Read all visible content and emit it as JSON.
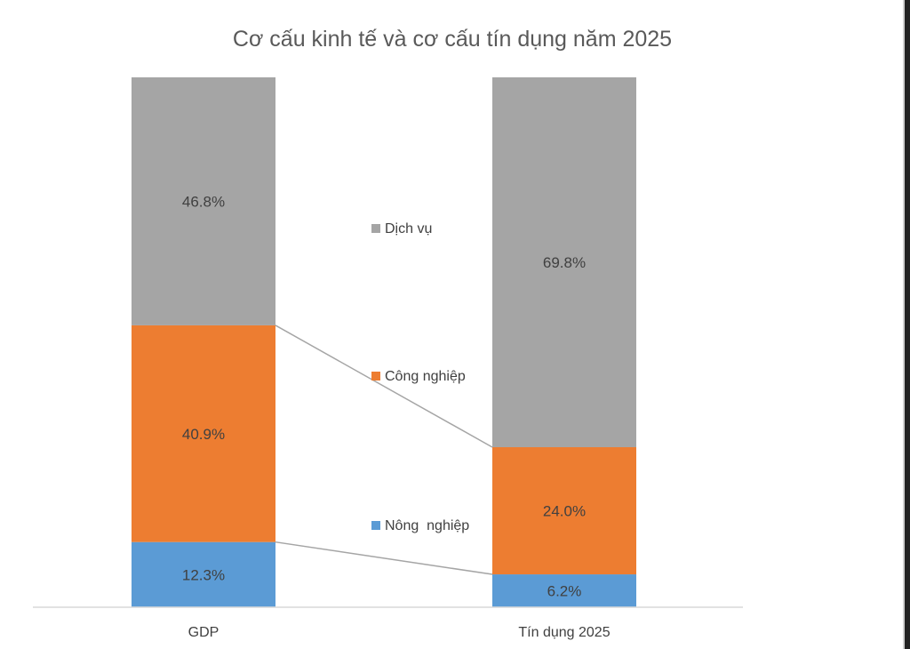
{
  "chart_data": {
    "type": "bar",
    "stacked": true,
    "percent_stacked": true,
    "title": "Cơ cấu kinh tế và cơ cấu tín dụng năm 2025",
    "categories": [
      "GDP",
      "Tín dụng 2025"
    ],
    "series": [
      {
        "name": "Nông  nghiệp",
        "values": [
          12.3,
          6.2
        ],
        "labels": [
          "12.3%",
          "6.2%"
        ],
        "color": "#5b9bd5"
      },
      {
        "name": "Công nghiệp",
        "values": [
          40.9,
          24.0
        ],
        "labels": [
          "40.9%",
          "24.0%"
        ],
        "color": "#ed7d31"
      },
      {
        "name": "Dịch vụ",
        "values": [
          46.8,
          69.8
        ],
        "labels": [
          "46.8%",
          "69.8%"
        ],
        "color": "#a5a5a5"
      }
    ],
    "legend_order": [
      "Dịch vụ",
      "Công nghiệp",
      "Nông  nghiệp"
    ],
    "legend_position": "center",
    "series_lines": true,
    "series_line_color": "#a5a5a5",
    "ylim": [
      0,
      100
    ],
    "label_color": "#404040",
    "title_color": "#595959",
    "axis_color": "#d9d9d9"
  }
}
